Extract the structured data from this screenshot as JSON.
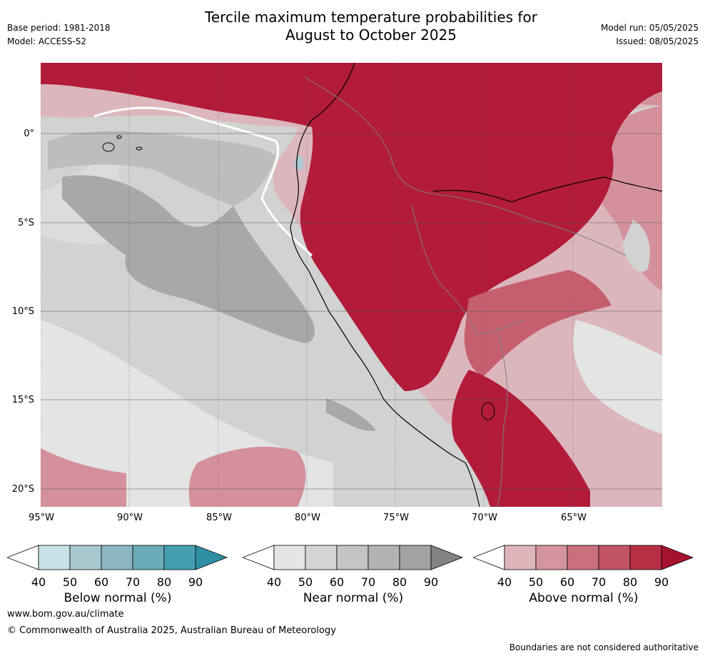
{
  "header": {
    "title_line1": "Tercile maximum temperature probabilities for",
    "title_line2": "August to October 2025",
    "base_period": "Base period: 1981-2018",
    "model": "Model: ACCESS-S2",
    "model_run": "Model run: 05/05/2025",
    "issued": "Issued: 08/05/2025"
  },
  "map": {
    "lat_labels": [
      "0°",
      "5°S",
      "10°S",
      "15°S",
      "20°S"
    ],
    "lon_labels": [
      "95°W",
      "90°W",
      "85°W",
      "80°W",
      "75°W",
      "70°W",
      "65°W"
    ],
    "colors": {
      "near_light": "#e4e4e4",
      "near_mid": "#d2d2d2",
      "near_dark": "#bdbdbd",
      "near_darker": "#a8a8a8",
      "above_light": "#dcb6bd",
      "above_mid": "#d4919b",
      "above_strong": "#c55f6e",
      "above_deep": "#b21c39",
      "below_light": "#a9cbd4"
    }
  },
  "colorbars": [
    {
      "label": "Below normal (%)",
      "ticks": [
        "40",
        "50",
        "60",
        "70",
        "80",
        "90"
      ],
      "colors": [
        "#ffffff",
        "#c9e1e6",
        "#a8c8cf",
        "#8ab7c2",
        "#6aadb9",
        "#44a0b1",
        "#2e8fa2"
      ]
    },
    {
      "label": "Near normal (%)",
      "ticks": [
        "40",
        "50",
        "60",
        "70",
        "80",
        "90"
      ],
      "colors": [
        "#ffffff",
        "#e5e5e5",
        "#d5d5d5",
        "#c4c4c4",
        "#b3b3b3",
        "#a2a2a2",
        "#838383"
      ]
    },
    {
      "label": "Above normal (%)",
      "ticks": [
        "40",
        "50",
        "60",
        "70",
        "80",
        "90"
      ],
      "colors": [
        "#ffffff",
        "#dfb5bc",
        "#d4959e",
        "#c9707c",
        "#c25565",
        "#b72f45",
        "#a5122e"
      ]
    }
  ],
  "footer": {
    "website": "www.bom.gov.au/climate",
    "copyright": "© Commonwealth of Australia 2025, Australian Bureau of Meteorology",
    "disclaimer": "Boundaries are not considered authoritative"
  }
}
